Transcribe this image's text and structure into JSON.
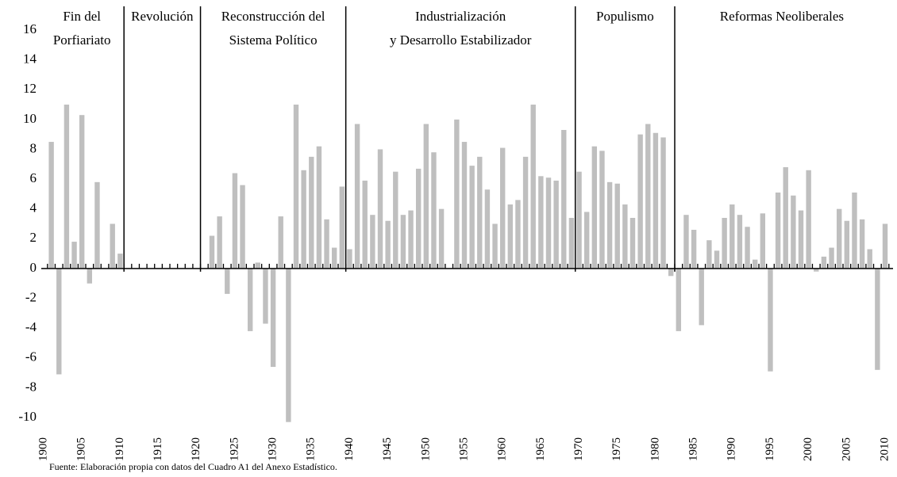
{
  "chart_data": {
    "type": "bar",
    "color": "#bfbfbf",
    "x": [
      1900,
      1901,
      1902,
      1903,
      1904,
      1905,
      1906,
      1907,
      1908,
      1909,
      1910,
      1911,
      1912,
      1913,
      1914,
      1915,
      1916,
      1917,
      1918,
      1919,
      1920,
      1921,
      1922,
      1923,
      1924,
      1925,
      1926,
      1927,
      1928,
      1929,
      1930,
      1931,
      1932,
      1933,
      1934,
      1935,
      1936,
      1937,
      1938,
      1939,
      1940,
      1941,
      1942,
      1943,
      1944,
      1945,
      1946,
      1947,
      1948,
      1949,
      1950,
      1951,
      1952,
      1953,
      1954,
      1955,
      1956,
      1957,
      1958,
      1959,
      1960,
      1961,
      1962,
      1963,
      1964,
      1965,
      1966,
      1967,
      1968,
      1969,
      1970,
      1971,
      1972,
      1973,
      1974,
      1975,
      1976,
      1977,
      1978,
      1979,
      1980,
      1981,
      1982,
      1983,
      1984,
      1985,
      1986,
      1987,
      1988,
      1989,
      1990,
      1991,
      1992,
      1993,
      1994,
      1995,
      1996,
      1997,
      1998,
      1999,
      2000,
      2001,
      2002,
      2003,
      2004,
      2005,
      2006,
      2007,
      2008,
      2009,
      2010
    ],
    "values": [
      null,
      8.5,
      -7.1,
      11.0,
      1.8,
      10.3,
      -1.0,
      5.8,
      null,
      3.0,
      1.0,
      null,
      null,
      null,
      null,
      null,
      null,
      null,
      null,
      null,
      null,
      null,
      2.2,
      3.5,
      -1.7,
      6.4,
      5.6,
      -4.2,
      0.4,
      -3.7,
      -6.6,
      3.5,
      -10.3,
      11.0,
      6.6,
      7.5,
      8.2,
      3.3,
      1.4,
      5.5,
      1.3,
      9.7,
      5.9,
      3.6,
      8.0,
      3.2,
      6.5,
      3.6,
      3.9,
      6.7,
      9.7,
      7.8,
      4.0,
      null,
      10.0,
      8.5,
      6.9,
      7.5,
      5.3,
      3.0,
      8.1,
      4.3,
      4.6,
      7.5,
      11.0,
      6.2,
      6.1,
      5.9,
      9.3,
      3.4,
      6.5,
      3.8,
      8.2,
      7.9,
      5.8,
      5.7,
      4.3,
      3.4,
      9.0,
      9.7,
      9.1,
      8.8,
      -0.5,
      -4.2,
      3.6,
      2.6,
      -3.8,
      1.9,
      1.2,
      3.4,
      4.3,
      3.6,
      2.8,
      0.6,
      3.7,
      -6.9,
      5.1,
      6.8,
      4.9,
      3.9,
      6.6,
      -0.2,
      0.8,
      1.4,
      4.0,
      3.2,
      5.1,
      3.3,
      1.3,
      -6.8,
      3.0
    ],
    "xlim": [
      1900,
      2010
    ],
    "xticks": [
      1900,
      1905,
      1910,
      1915,
      1920,
      1925,
      1930,
      1935,
      1940,
      1945,
      1950,
      1955,
      1960,
      1965,
      1970,
      1975,
      1980,
      1985,
      1990,
      1995,
      2000,
      2005,
      2010
    ],
    "ylim": [
      -10,
      16
    ],
    "yticks": [
      -10,
      -8,
      -6,
      -4,
      -2,
      0,
      2,
      4,
      6,
      8,
      10,
      12,
      14,
      16
    ],
    "grid": false,
    "periods": [
      {
        "label": [
          "Fin del",
          "Porfiariato"
        ],
        "start": 1900,
        "end": 1910
      },
      {
        "label": [
          "Revolución"
        ],
        "start": 1911,
        "end": 1920
      },
      {
        "label": [
          "Reconstrucción del",
          "Sistema Político"
        ],
        "start": 1921,
        "end": 1939
      },
      {
        "label": [
          "Industrialización",
          "y Desarrollo Estabilizador"
        ],
        "start": 1940,
        "end": 1969
      },
      {
        "label": [
          "Populismo"
        ],
        "start": 1970,
        "end": 1982
      },
      {
        "label": [
          "Reformas Neoliberales"
        ],
        "start": 1983,
        "end": 2010
      }
    ],
    "source": "Fuente: Elaboración propia con datos del Cuadro A1 del Anexo Estadístico."
  }
}
